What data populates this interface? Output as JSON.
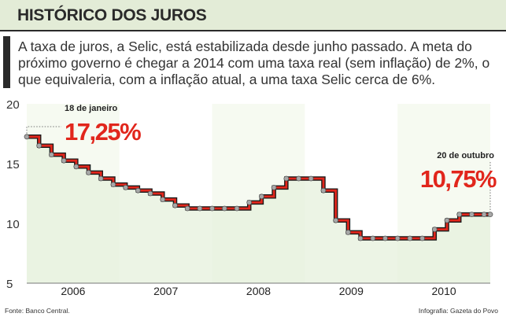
{
  "header": {
    "title": "HISTÓRICO DOS JUROS"
  },
  "subtitle": "A taxa de juros, a Selic, está estabilizada desde junho passado. A meta do próximo governo é chegar a 2014 com uma taxa real (sem inflação) de 2%, o que equivaleria, com a inflação atual, a uma taxa Selic cerca de 6%.",
  "footer": {
    "source": "Fonte: Banco Central.",
    "credit": "Infografia: Gazeta do Povo"
  },
  "chart_data": {
    "type": "line",
    "ylim": [
      5,
      20
    ],
    "y_ticks": [
      5,
      10,
      15,
      20
    ],
    "years": [
      "2006",
      "2007",
      "2008",
      "2009",
      "2010"
    ],
    "x_start": 2006,
    "x_end": 2011,
    "values": [
      17.25,
      16.5,
      15.75,
      15.25,
      14.75,
      14.25,
      13.75,
      13.25,
      13.0,
      12.75,
      12.5,
      12.0,
      11.5,
      11.25,
      11.25,
      11.25,
      11.25,
      11.25,
      11.75,
      12.25,
      13.0,
      13.75,
      13.75,
      13.75,
      12.75,
      10.25,
      9.25,
      8.75,
      8.75,
      8.75,
      8.75,
      8.75,
      8.75,
      9.5,
      10.25,
      10.75,
      10.75,
      10.75
    ],
    "annotations": [
      {
        "label": "18 de janeiro",
        "value_text": "17,25%"
      },
      {
        "label": "20 de outubro",
        "value_text": "10,75%"
      }
    ]
  }
}
